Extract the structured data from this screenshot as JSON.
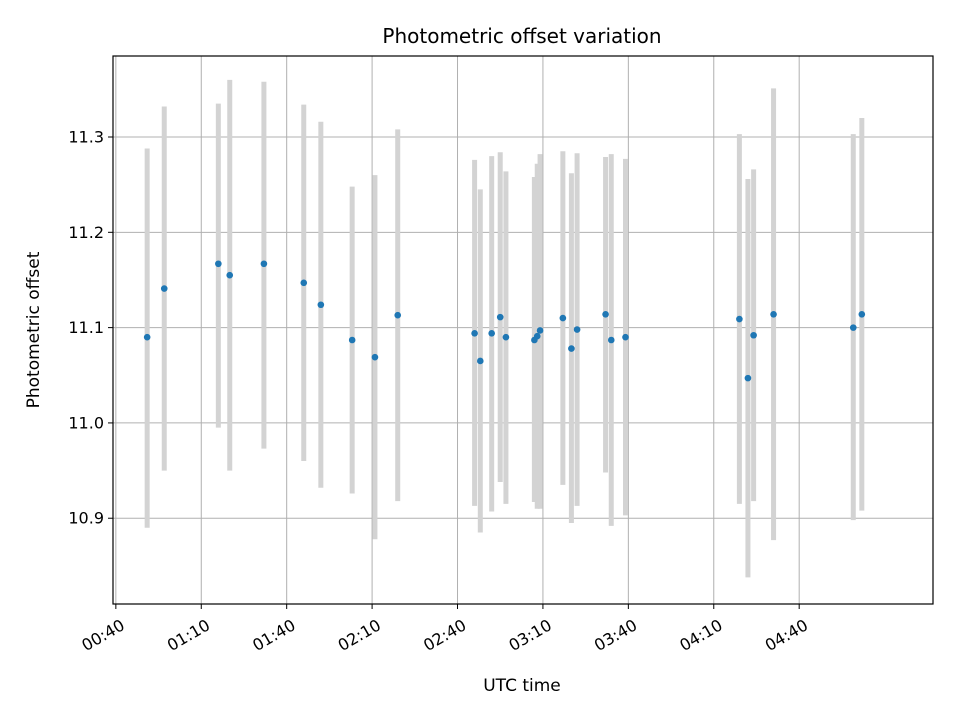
{
  "chart_data": {
    "type": "scatter",
    "title": "Photometric offset variation",
    "xlabel": "UTC time",
    "ylabel": "Photometric offset",
    "xlim": [
      "00:39",
      "05:27"
    ],
    "ylim": [
      10.81,
      11.385
    ],
    "x_ticks": [
      "00:40",
      "01:10",
      "01:40",
      "02:10",
      "02:40",
      "03:10",
      "03:40",
      "04:10",
      "04:40"
    ],
    "y_ticks": [
      "10.9",
      "11.0",
      "11.1",
      "11.2",
      "11.3"
    ],
    "grid": true,
    "colors": {
      "points": "#1f77b4",
      "errorbars": "#d3d3d3",
      "grid": "#b0b0b0"
    },
    "points": [
      {
        "x": "00:51",
        "y": 11.09,
        "low": 10.89,
        "high": 11.288
      },
      {
        "x": "00:57",
        "y": 11.141,
        "low": 10.95,
        "high": 11.332
      },
      {
        "x": "01:16",
        "y": 11.167,
        "low": 10.995,
        "high": 11.335
      },
      {
        "x": "01:20",
        "y": 11.155,
        "low": 10.95,
        "high": 11.36
      },
      {
        "x": "01:32",
        "y": 11.167,
        "low": 10.973,
        "high": 11.358
      },
      {
        "x": "01:46",
        "y": 11.147,
        "low": 10.96,
        "high": 11.334
      },
      {
        "x": "01:52",
        "y": 11.124,
        "low": 10.932,
        "high": 11.316
      },
      {
        "x": "02:03",
        "y": 11.087,
        "low": 10.926,
        "high": 11.248
      },
      {
        "x": "02:11",
        "y": 11.069,
        "low": 10.878,
        "high": 11.26
      },
      {
        "x": "02:19",
        "y": 11.113,
        "low": 10.918,
        "high": 11.308
      },
      {
        "x": "02:46",
        "y": 11.094,
        "low": 10.913,
        "high": 11.276
      },
      {
        "x": "02:48",
        "y": 11.065,
        "low": 10.885,
        "high": 11.245
      },
      {
        "x": "02:52",
        "y": 11.094,
        "low": 10.907,
        "high": 11.28
      },
      {
        "x": "02:55",
        "y": 11.111,
        "low": 10.938,
        "high": 11.284
      },
      {
        "x": "02:57",
        "y": 11.09,
        "low": 10.915,
        "high": 11.264
      },
      {
        "x": "03:07",
        "y": 11.087,
        "low": 10.917,
        "high": 11.258
      },
      {
        "x": "03:08",
        "y": 11.091,
        "low": 10.91,
        "high": 11.272
      },
      {
        "x": "03:09",
        "y": 11.097,
        "low": 10.91,
        "high": 11.282
      },
      {
        "x": "03:17",
        "y": 11.11,
        "low": 10.935,
        "high": 11.285
      },
      {
        "x": "03:20",
        "y": 11.078,
        "low": 10.895,
        "high": 11.262
      },
      {
        "x": "03:22",
        "y": 11.098,
        "low": 10.913,
        "high": 11.283
      },
      {
        "x": "03:32",
        "y": 11.114,
        "low": 10.948,
        "high": 11.279
      },
      {
        "x": "03:34",
        "y": 11.087,
        "low": 10.892,
        "high": 11.282
      },
      {
        "x": "03:39",
        "y": 11.09,
        "low": 10.903,
        "high": 11.277
      },
      {
        "x": "04:19",
        "y": 11.109,
        "low": 10.915,
        "high": 11.303
      },
      {
        "x": "04:22",
        "y": 11.047,
        "low": 10.838,
        "high": 11.256
      },
      {
        "x": "04:24",
        "y": 11.092,
        "low": 10.918,
        "high": 11.266
      },
      {
        "x": "04:31",
        "y": 11.114,
        "low": 10.877,
        "high": 11.351
      },
      {
        "x": "04:59",
        "y": 11.1,
        "low": 10.898,
        "high": 11.303
      },
      {
        "x": "05:02",
        "y": 11.114,
        "low": 10.908,
        "high": 11.32
      }
    ]
  }
}
